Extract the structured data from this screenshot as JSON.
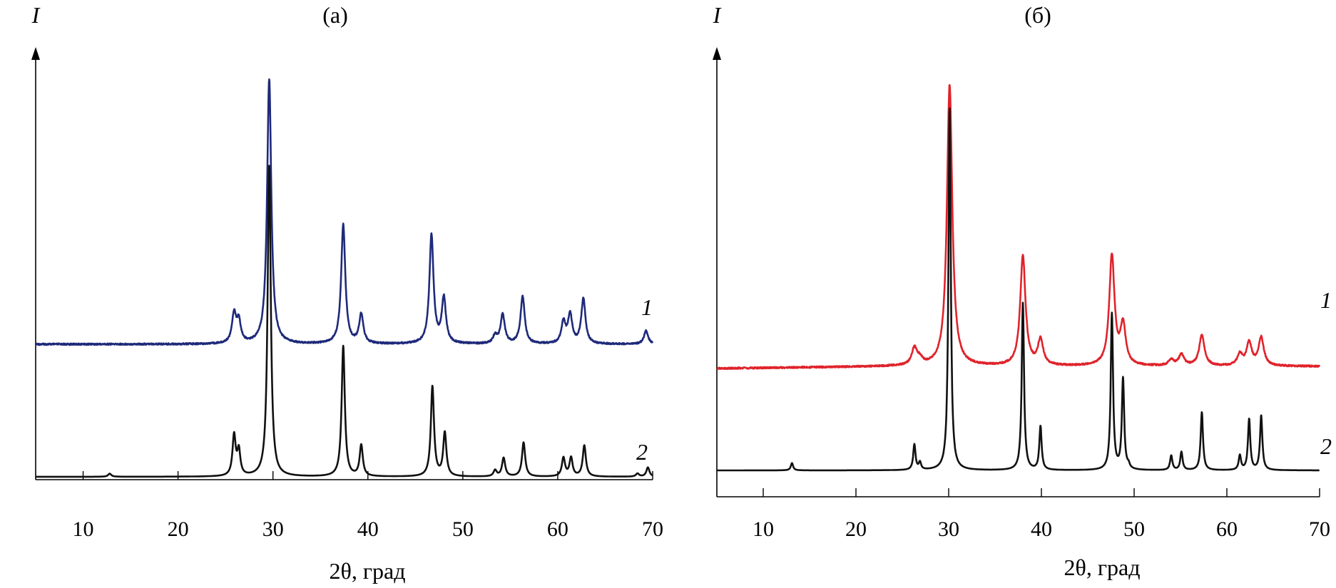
{
  "chart_data": [
    {
      "type": "line",
      "title": "(а)",
      "ylabel": "I",
      "xlabel": "2θ, град",
      "xlim": [
        5,
        70
      ],
      "xticks": [
        10,
        20,
        30,
        40,
        50,
        60,
        70
      ],
      "yticks": [],
      "grid": false,
      "legend": "none",
      "series": [
        {
          "name": "1",
          "color": "#1f2a7a",
          "baseline": 0.0,
          "peaks": [
            [
              25.9,
              0.11
            ],
            [
              26.4,
              0.08
            ],
            [
              29.6,
              1.0
            ],
            [
              37.4,
              0.45
            ],
            [
              39.3,
              0.11
            ],
            [
              46.7,
              0.41
            ],
            [
              48.0,
              0.17
            ],
            [
              53.4,
              0.03
            ],
            [
              54.2,
              0.11
            ],
            [
              56.3,
              0.18
            ],
            [
              60.6,
              0.08
            ],
            [
              61.3,
              0.11
            ],
            [
              62.7,
              0.17
            ],
            [
              69.3,
              0.05
            ]
          ]
        },
        {
          "name": "2",
          "color": "#111111",
          "baseline": 0.0,
          "peaks": [
            [
              12.8,
              0.01
            ],
            [
              25.9,
              0.13
            ],
            [
              26.4,
              0.08
            ],
            [
              29.6,
              1.0
            ],
            [
              37.4,
              0.42
            ],
            [
              39.3,
              0.1
            ],
            [
              46.8,
              0.29
            ],
            [
              48.1,
              0.14
            ],
            [
              53.4,
              0.02
            ],
            [
              54.3,
              0.06
            ],
            [
              56.4,
              0.11
            ],
            [
              60.6,
              0.06
            ],
            [
              61.4,
              0.06
            ],
            [
              62.8,
              0.1
            ],
            [
              68.4,
              0.01
            ],
            [
              69.5,
              0.03
            ]
          ]
        }
      ]
    },
    {
      "type": "line",
      "title": "(б)",
      "ylabel": "I",
      "xlabel": "2θ, град",
      "xlim": [
        5,
        70
      ],
      "xticks": [
        10,
        20,
        30,
        40,
        50,
        60,
        70
      ],
      "yticks": [],
      "grid": false,
      "legend": "none",
      "series": [
        {
          "name": "1",
          "color": "#e0232b",
          "baseline": 0.0,
          "peaks": [
            [
              26.3,
              0.06
            ],
            [
              26.9,
              0.02
            ],
            [
              30.1,
              1.0
            ],
            [
              38.0,
              0.39
            ],
            [
              39.9,
              0.09
            ],
            [
              47.6,
              0.39
            ],
            [
              48.8,
              0.14
            ],
            [
              54.0,
              0.02
            ],
            [
              55.1,
              0.04
            ],
            [
              57.3,
              0.11
            ],
            [
              61.4,
              0.04
            ],
            [
              62.4,
              0.08
            ],
            [
              63.7,
              0.1
            ]
          ]
        },
        {
          "name": "2",
          "color": "#111111",
          "baseline": 0.0,
          "peaks": [
            [
              13.1,
              0.02
            ],
            [
              26.3,
              0.07
            ],
            [
              26.9,
              0.02
            ],
            [
              30.1,
              1.0
            ],
            [
              38.0,
              0.46
            ],
            [
              39.9,
              0.12
            ],
            [
              47.6,
              0.43
            ],
            [
              48.8,
              0.25
            ],
            [
              49.4,
              0.01
            ],
            [
              54.0,
              0.04
            ],
            [
              55.1,
              0.05
            ],
            [
              57.3,
              0.16
            ],
            [
              61.4,
              0.04
            ],
            [
              62.4,
              0.14
            ],
            [
              63.7,
              0.15
            ]
          ]
        }
      ]
    }
  ]
}
